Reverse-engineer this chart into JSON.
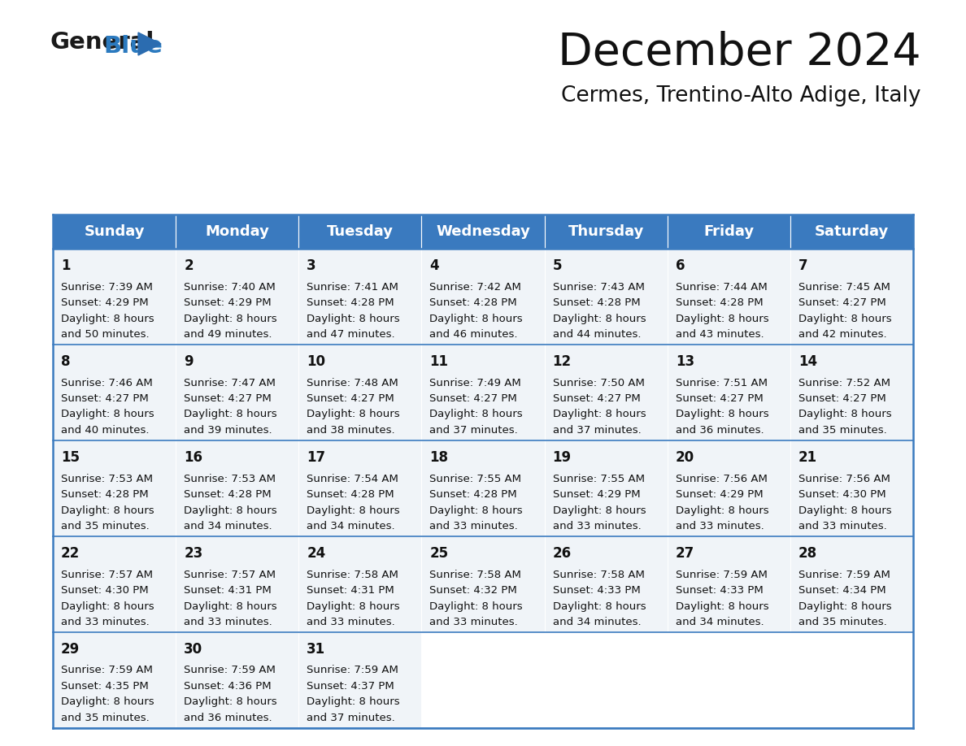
{
  "title": "December 2024",
  "subtitle": "Cermes, Trentino-Alto Adige, Italy",
  "header_color": "#3a7abf",
  "header_text_color": "#ffffff",
  "background_color": "#ffffff",
  "cell_bg": "#f0f4f8",
  "border_color": "#3a7abf",
  "day_headers": [
    "Sunday",
    "Monday",
    "Tuesday",
    "Wednesday",
    "Thursday",
    "Friday",
    "Saturday"
  ],
  "days": [
    {
      "day": 1,
      "col": 0,
      "row": 0,
      "sunrise": "7:39 AM",
      "sunset": "4:29 PM",
      "daylight_h": "8 hours",
      "daylight_m": "and 50 minutes."
    },
    {
      "day": 2,
      "col": 1,
      "row": 0,
      "sunrise": "7:40 AM",
      "sunset": "4:29 PM",
      "daylight_h": "8 hours",
      "daylight_m": "and 49 minutes."
    },
    {
      "day": 3,
      "col": 2,
      "row": 0,
      "sunrise": "7:41 AM",
      "sunset": "4:28 PM",
      "daylight_h": "8 hours",
      "daylight_m": "and 47 minutes."
    },
    {
      "day": 4,
      "col": 3,
      "row": 0,
      "sunrise": "7:42 AM",
      "sunset": "4:28 PM",
      "daylight_h": "8 hours",
      "daylight_m": "and 46 minutes."
    },
    {
      "day": 5,
      "col": 4,
      "row": 0,
      "sunrise": "7:43 AM",
      "sunset": "4:28 PM",
      "daylight_h": "8 hours",
      "daylight_m": "and 44 minutes."
    },
    {
      "day": 6,
      "col": 5,
      "row": 0,
      "sunrise": "7:44 AM",
      "sunset": "4:28 PM",
      "daylight_h": "8 hours",
      "daylight_m": "and 43 minutes."
    },
    {
      "day": 7,
      "col": 6,
      "row": 0,
      "sunrise": "7:45 AM",
      "sunset": "4:27 PM",
      "daylight_h": "8 hours",
      "daylight_m": "and 42 minutes."
    },
    {
      "day": 8,
      "col": 0,
      "row": 1,
      "sunrise": "7:46 AM",
      "sunset": "4:27 PM",
      "daylight_h": "8 hours",
      "daylight_m": "and 40 minutes."
    },
    {
      "day": 9,
      "col": 1,
      "row": 1,
      "sunrise": "7:47 AM",
      "sunset": "4:27 PM",
      "daylight_h": "8 hours",
      "daylight_m": "and 39 minutes."
    },
    {
      "day": 10,
      "col": 2,
      "row": 1,
      "sunrise": "7:48 AM",
      "sunset": "4:27 PM",
      "daylight_h": "8 hours",
      "daylight_m": "and 38 minutes."
    },
    {
      "day": 11,
      "col": 3,
      "row": 1,
      "sunrise": "7:49 AM",
      "sunset": "4:27 PM",
      "daylight_h": "8 hours",
      "daylight_m": "and 37 minutes."
    },
    {
      "day": 12,
      "col": 4,
      "row": 1,
      "sunrise": "7:50 AM",
      "sunset": "4:27 PM",
      "daylight_h": "8 hours",
      "daylight_m": "and 37 minutes."
    },
    {
      "day": 13,
      "col": 5,
      "row": 1,
      "sunrise": "7:51 AM",
      "sunset": "4:27 PM",
      "daylight_h": "8 hours",
      "daylight_m": "and 36 minutes."
    },
    {
      "day": 14,
      "col": 6,
      "row": 1,
      "sunrise": "7:52 AM",
      "sunset": "4:27 PM",
      "daylight_h": "8 hours",
      "daylight_m": "and 35 minutes."
    },
    {
      "day": 15,
      "col": 0,
      "row": 2,
      "sunrise": "7:53 AM",
      "sunset": "4:28 PM",
      "daylight_h": "8 hours",
      "daylight_m": "and 35 minutes."
    },
    {
      "day": 16,
      "col": 1,
      "row": 2,
      "sunrise": "7:53 AM",
      "sunset": "4:28 PM",
      "daylight_h": "8 hours",
      "daylight_m": "and 34 minutes."
    },
    {
      "day": 17,
      "col": 2,
      "row": 2,
      "sunrise": "7:54 AM",
      "sunset": "4:28 PM",
      "daylight_h": "8 hours",
      "daylight_m": "and 34 minutes."
    },
    {
      "day": 18,
      "col": 3,
      "row": 2,
      "sunrise": "7:55 AM",
      "sunset": "4:28 PM",
      "daylight_h": "8 hours",
      "daylight_m": "and 33 minutes."
    },
    {
      "day": 19,
      "col": 4,
      "row": 2,
      "sunrise": "7:55 AM",
      "sunset": "4:29 PM",
      "daylight_h": "8 hours",
      "daylight_m": "and 33 minutes."
    },
    {
      "day": 20,
      "col": 5,
      "row": 2,
      "sunrise": "7:56 AM",
      "sunset": "4:29 PM",
      "daylight_h": "8 hours",
      "daylight_m": "and 33 minutes."
    },
    {
      "day": 21,
      "col": 6,
      "row": 2,
      "sunrise": "7:56 AM",
      "sunset": "4:30 PM",
      "daylight_h": "8 hours",
      "daylight_m": "and 33 minutes."
    },
    {
      "day": 22,
      "col": 0,
      "row": 3,
      "sunrise": "7:57 AM",
      "sunset": "4:30 PM",
      "daylight_h": "8 hours",
      "daylight_m": "and 33 minutes."
    },
    {
      "day": 23,
      "col": 1,
      "row": 3,
      "sunrise": "7:57 AM",
      "sunset": "4:31 PM",
      "daylight_h": "8 hours",
      "daylight_m": "and 33 minutes."
    },
    {
      "day": 24,
      "col": 2,
      "row": 3,
      "sunrise": "7:58 AM",
      "sunset": "4:31 PM",
      "daylight_h": "8 hours",
      "daylight_m": "and 33 minutes."
    },
    {
      "day": 25,
      "col": 3,
      "row": 3,
      "sunrise": "7:58 AM",
      "sunset": "4:32 PM",
      "daylight_h": "8 hours",
      "daylight_m": "and 33 minutes."
    },
    {
      "day": 26,
      "col": 4,
      "row": 3,
      "sunrise": "7:58 AM",
      "sunset": "4:33 PM",
      "daylight_h": "8 hours",
      "daylight_m": "and 34 minutes."
    },
    {
      "day": 27,
      "col": 5,
      "row": 3,
      "sunrise": "7:59 AM",
      "sunset": "4:33 PM",
      "daylight_h": "8 hours",
      "daylight_m": "and 34 minutes."
    },
    {
      "day": 28,
      "col": 6,
      "row": 3,
      "sunrise": "7:59 AM",
      "sunset": "4:34 PM",
      "daylight_h": "8 hours",
      "daylight_m": "and 35 minutes."
    },
    {
      "day": 29,
      "col": 0,
      "row": 4,
      "sunrise": "7:59 AM",
      "sunset": "4:35 PM",
      "daylight_h": "8 hours",
      "daylight_m": "and 35 minutes."
    },
    {
      "day": 30,
      "col": 1,
      "row": 4,
      "sunrise": "7:59 AM",
      "sunset": "4:36 PM",
      "daylight_h": "8 hours",
      "daylight_m": "and 36 minutes."
    },
    {
      "day": 31,
      "col": 2,
      "row": 4,
      "sunrise": "7:59 AM",
      "sunset": "4:37 PM",
      "daylight_h": "8 hours",
      "daylight_m": "and 37 minutes."
    }
  ],
  "num_rows": 5,
  "ncols": 7,
  "figsize": [
    11.88,
    9.18
  ],
  "dpi": 100
}
